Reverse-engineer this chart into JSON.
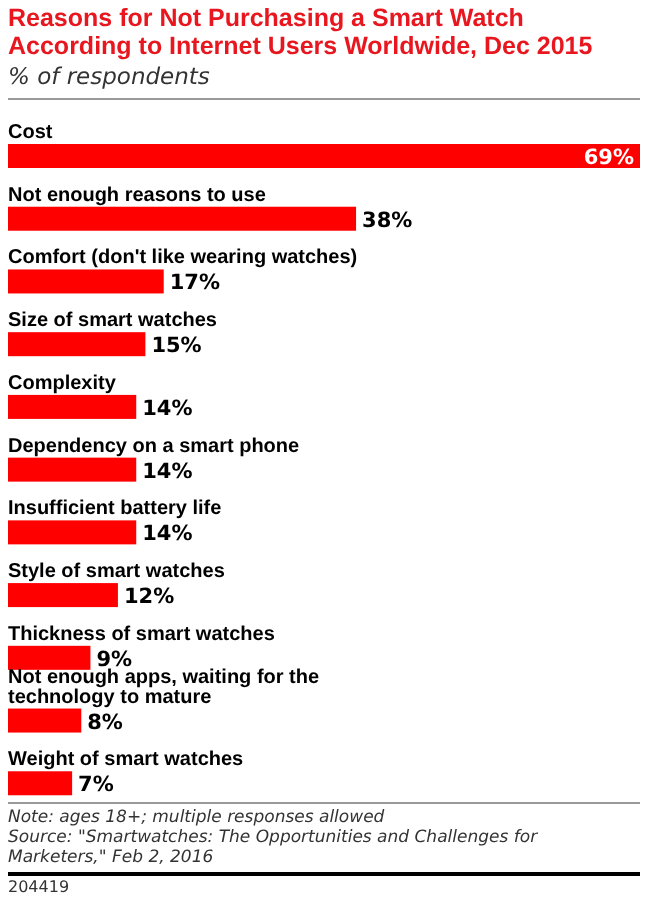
{
  "chart_data": {
    "type": "bar",
    "orientation": "horizontal",
    "title": "Reasons for Not Purchasing a Smart Watch According to Internet Users Worldwide, Dec 2015",
    "subtitle": "% of respondents",
    "categories": [
      "Cost",
      "Not enough reasons to use",
      "Comfort (don't like wearing watches)",
      "Size of smart watches",
      "Complexity",
      "Dependency on a smart phone",
      "Insufficient battery life",
      "Style of smart watches",
      "Thickness of smart watches",
      "Not enough apps, waiting for the technology to mature",
      "Weight of smart watches"
    ],
    "values": [
      69,
      38,
      17,
      15,
      14,
      14,
      14,
      12,
      9,
      8,
      7
    ],
    "value_labels": [
      "69%",
      "38%",
      "17%",
      "15%",
      "14%",
      "14%",
      "14%",
      "12%",
      "9%",
      "8%",
      "7%"
    ],
    "color": "#ff0000",
    "annotations": [
      "Note: ages 18+; multiple responses allowed",
      "Source: \"Smartwatches: The Opportunities and Challenges for Marketers,\" Feb 2, 2016",
      "204419"
    ]
  }
}
